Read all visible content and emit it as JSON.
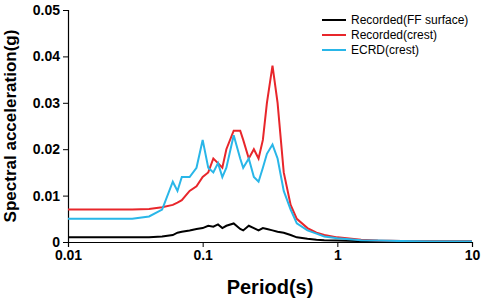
{
  "chart_data": {
    "type": "line",
    "x_label": "Period(s)",
    "y_label": "Spectral acceleration(g)",
    "log": "x",
    "grid": false,
    "legend": "top-right",
    "xlim": [
      0.01,
      10
    ],
    "xticks": [
      0.01,
      0.1,
      1,
      10
    ],
    "ylim": [
      0,
      0.05
    ],
    "yticks": [
      0,
      0.01,
      0.02,
      0.03,
      0.04,
      0.05
    ],
    "x": [
      0.01,
      0.02,
      0.03,
      0.04,
      0.05,
      0.06,
      0.065,
      0.07,
      0.08,
      0.09,
      0.1,
      0.11,
      0.12,
      0.13,
      0.14,
      0.15,
      0.17,
      0.19,
      0.2,
      0.22,
      0.24,
      0.26,
      0.28,
      0.3,
      0.33,
      0.36,
      0.4,
      0.45,
      0.5,
      0.6,
      0.7,
      0.8,
      1,
      1.5,
      2,
      3,
      5,
      10
    ],
    "series": [
      {
        "name": "Recorded(FF surface)",
        "color": "#000000",
        "values": [
          0.001,
          0.001,
          0.001,
          0.001,
          0.0012,
          0.0015,
          0.002,
          0.0022,
          0.0025,
          0.0028,
          0.003,
          0.0035,
          0.0033,
          0.0038,
          0.003,
          0.0035,
          0.004,
          0.0028,
          0.0025,
          0.0035,
          0.003,
          0.0025,
          0.003,
          0.0028,
          0.0025,
          0.0022,
          0.002,
          0.0015,
          0.001,
          0.0007,
          0.0005,
          0.0004,
          0.0003,
          0.0002,
          0.00015,
          0.0001,
          0.0001,
          0.0001
        ]
      },
      {
        "name": "Recorded(crest)",
        "color": "#e8262b",
        "values": [
          0.007,
          0.007,
          0.007,
          0.0071,
          0.0075,
          0.008,
          0.0085,
          0.009,
          0.011,
          0.012,
          0.014,
          0.015,
          0.018,
          0.017,
          0.016,
          0.02,
          0.024,
          0.024,
          0.022,
          0.018,
          0.02,
          0.018,
          0.022,
          0.03,
          0.038,
          0.03,
          0.015,
          0.008,
          0.005,
          0.003,
          0.002,
          0.0015,
          0.001,
          0.0005,
          0.0003,
          0.0002,
          0.0001,
          0.0001
        ]
      },
      {
        "name": "ECRD(crest)",
        "color": "#29b6e8",
        "values": [
          0.005,
          0.005,
          0.005,
          0.0055,
          0.007,
          0.013,
          0.011,
          0.014,
          0.014,
          0.016,
          0.022,
          0.016,
          0.015,
          0.017,
          0.014,
          0.016,
          0.023,
          0.018,
          0.016,
          0.018,
          0.014,
          0.013,
          0.016,
          0.019,
          0.021,
          0.018,
          0.011,
          0.007,
          0.004,
          0.0025,
          0.0018,
          0.0012,
          0.0008,
          0.0004,
          0.0003,
          0.0002,
          0.0001,
          0.0001
        ]
      }
    ]
  }
}
